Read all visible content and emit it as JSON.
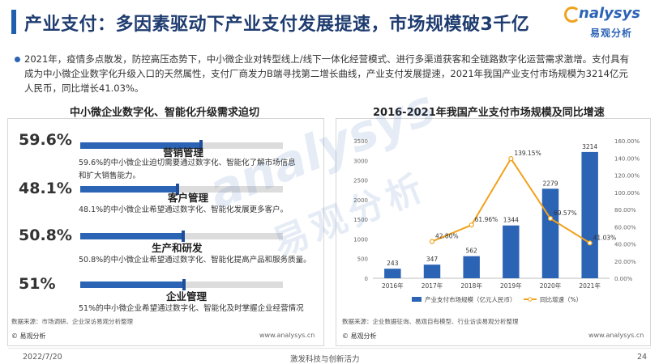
{
  "header": {
    "title": "产业支付：多因素驱动下产业支付发展提速，市场规模破3千亿",
    "logo_en": "nalysys",
    "logo_zh": "易观分析"
  },
  "intro": {
    "text": "2021年，疫情多点散发，防控高压态势下，中小微企业对转型线上/线下一体化经营模式、进行多渠道获客和全链路数字化运营需求激增。支付具有成为中小微企业数字化升级入口的天然属性，支付厂商发力B端寻找第二增长曲线，产业支付发展提速，2021年我国产业支付市场规模为3214亿元人民币，同比增长41.03%。"
  },
  "left_panel": {
    "heading": "中小微企业数字化、智能化升级需求迫切",
    "items": [
      {
        "percent_label": "59.6%",
        "value": 59.6,
        "label": "营销管理",
        "desc": "59.6%的中小微企业迫切需要通过数字化、智能化了解市场信息和扩大销售能力。"
      },
      {
        "percent_label": "48.1%",
        "value": 48.1,
        "label": "客户管理",
        "desc": "48.1%的中小微企业希望通过数字化、智能化发展更多客户。"
      },
      {
        "percent_label": "50.8%",
        "value": 50.8,
        "label": "生产和研发",
        "desc": "50.8%的中小微企业希望通过数字化、智能化提高产品和服务质量。"
      },
      {
        "percent_label": "51%",
        "value": 51,
        "label": "企业管理",
        "desc": "51%的中小微企业希望通过数字化、智能化及时掌握企业经营情况"
      }
    ],
    "source": "数据来源：市场调研、企业深访易观分析整理",
    "copyright": "© 易观分析",
    "website": "www.analysys.cn"
  },
  "right_panel": {
    "source": "数据来源：企业数据征询、易观自有模型、行业访谈易观分析整理",
    "copyright": "© 易观分析",
    "website": "www.analysys.cn"
  },
  "chart_data": {
    "type": "bar",
    "title": "2016-2021年我国产业支付市场规模及同比增速",
    "categories": [
      "2016年",
      "2017年",
      "2018年",
      "2019年",
      "2020年",
      "2021年"
    ],
    "series": [
      {
        "name": "产业支付市场规模（亿元人民币）",
        "type": "bar",
        "axis": "left",
        "values": [
          243,
          347,
          562,
          1344,
          2279,
          3214
        ],
        "labels": [
          "243",
          "347",
          "562",
          "1344",
          "2279",
          "3214"
        ],
        "color": "#2b63b5"
      },
      {
        "name": "同比增速（%）",
        "type": "line",
        "axis": "right",
        "values": [
          null,
          42.8,
          61.96,
          139.15,
          69.57,
          41.03
        ],
        "labels": [
          "",
          "42.80%",
          "61.96%",
          "139.15%",
          "69.57%",
          "41.03%"
        ],
        "color": "#f1a21c"
      }
    ],
    "y_left": {
      "ylim": [
        0,
        3500
      ],
      "ticks": [
        "0",
        "500",
        "1000",
        "1500",
        "2000",
        "2500",
        "3000",
        "3500"
      ]
    },
    "y_right": {
      "ylim": [
        0,
        160
      ],
      "ticks": [
        "0.00%",
        "20.00%",
        "40.00%",
        "60.00%",
        "80.00%",
        "100.00%",
        "120.00%",
        "140.00%",
        "160.00%"
      ]
    },
    "grid": false,
    "legend": "bottom"
  },
  "watermark": {
    "en": "analysys",
    "zh": "易观分析"
  },
  "footer": {
    "date": "2022/7/20",
    "center": "激发科技与创新活力",
    "page": "24"
  }
}
